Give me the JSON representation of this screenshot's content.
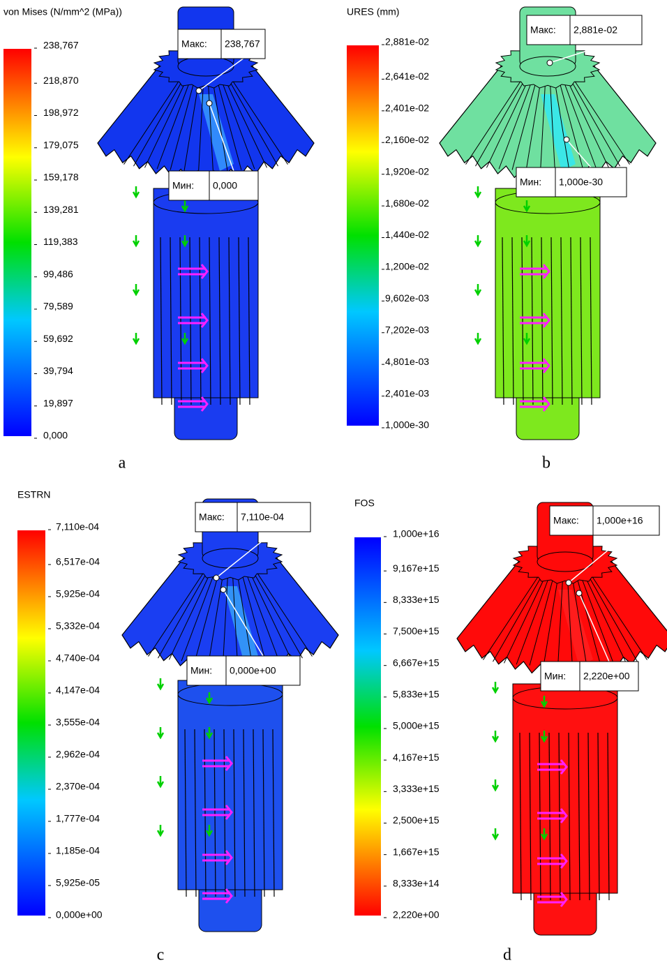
{
  "panels": [
    {
      "legend_title": "von Mises (N/mm^2 (MPa))",
      "scale": [
        "238,767",
        "218,870",
        "198,972",
        "179,075",
        "159,178",
        "139,281",
        "119,383",
        "99,486",
        "79,589",
        "59,692",
        "39,794",
        "19,897",
        "0,000"
      ],
      "max_label": "Макс:",
      "max_value": "238,767",
      "min_label": "Мин:",
      "min_value": "0,000",
      "caption": "a"
    },
    {
      "legend_title": "URES (mm)",
      "scale": [
        "2,881e-02",
        "2,641e-02",
        "2,401e-02",
        "2,160e-02",
        "1,920e-02",
        "1,680e-02",
        "1,440e-02",
        "1,200e-02",
        "9,602e-03",
        "7,202e-03",
        "4,801e-03",
        "2,401e-03",
        "1,000e-30"
      ],
      "max_label": "Макс:",
      "max_value": "2,881e-02",
      "min_label": "Мин:",
      "min_value": "1,000e-30",
      "caption": "b"
    },
    {
      "legend_title": "ESTRN",
      "scale": [
        "7,110e-04",
        "6,517e-04",
        "5,925e-04",
        "5,332e-04",
        "4,740e-04",
        "4,147e-04",
        "3,555e-04",
        "2,962e-04",
        "2,370e-04",
        "1,777e-04",
        "1,185e-04",
        "5,925e-05",
        "0,000e+00"
      ],
      "max_label": "Макс:",
      "max_value": "7,110e-04",
      "min_label": "Мин:",
      "min_value": "0,000e+00",
      "caption": "c"
    },
    {
      "legend_title": "FOS",
      "scale": [
        "1,000e+16",
        "9,167e+15",
        "8,333e+15",
        "7,500e+15",
        "6,667e+15",
        "5,833e+15",
        "5,000e+15",
        "4,167e+15",
        "3,333e+15",
        "2,500e+15",
        "1,667e+15",
        "8,333e+14",
        "2,220e+00"
      ],
      "max_label": "Макс:",
      "max_value": "1,000e+16",
      "min_label": "Мин:",
      "min_value": "2,220e+00",
      "caption": "d"
    }
  ]
}
